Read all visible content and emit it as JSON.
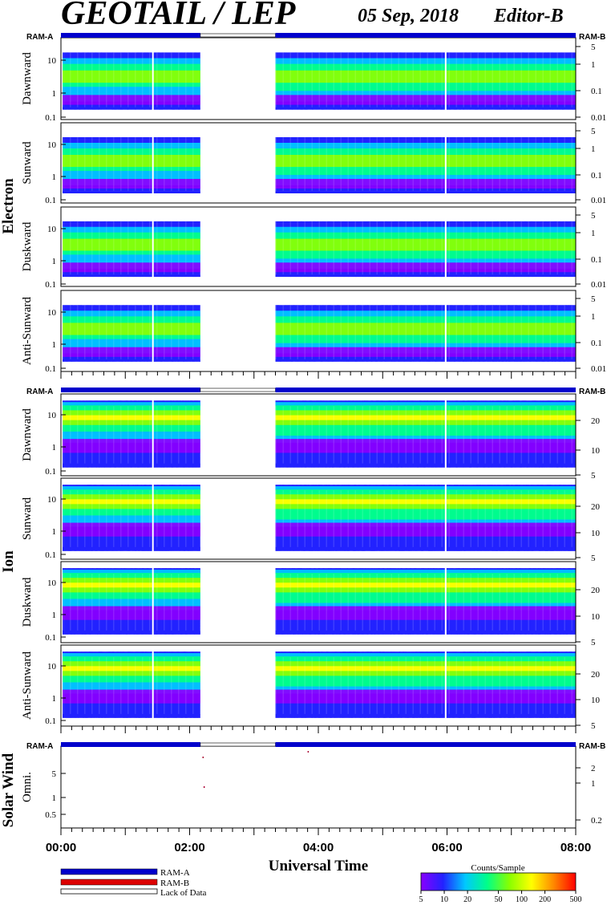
{
  "header": {
    "instrument": "GEOTAIL / LEP",
    "date": "05 Sep, 2018",
    "editor": "Editor-B"
  },
  "ram_labels": {
    "a": "RAM-A",
    "b": "RAM-B"
  },
  "groups": {
    "electron": "Electron",
    "ion": "Ion",
    "solar_wind": "Solar Wind"
  },
  "xaxis": {
    "title": "Universal Time",
    "ticks": [
      "00:00",
      "02:00",
      "04:00",
      "06:00",
      "08:00"
    ]
  },
  "legend": {
    "ram_a": "RAM-A",
    "ram_b": "RAM-B",
    "lack": "Lack of Data"
  },
  "colorbar": {
    "title": "Counts/Sample",
    "ticks": [
      "5",
      "10",
      "20",
      "50",
      "100",
      "200",
      "500"
    ],
    "colors": [
      "#8800ff",
      "#2222ff",
      "#00c8ff",
      "#00ff88",
      "#88ff00",
      "#ffff00",
      "#ff8800",
      "#ff0000"
    ]
  },
  "chart_data": {
    "type": "heatmap",
    "x_range": [
      "00:00",
      "08:00"
    ],
    "data_gap": [
      "02:10",
      "03:20"
    ],
    "panels": [
      {
        "group": "Electron",
        "label": "Dawnward",
        "left_ticks": [
          "10",
          "1",
          "0.1"
        ],
        "right_ticks": [
          "5",
          "1",
          "0.1",
          "0.01"
        ]
      },
      {
        "group": "Electron",
        "label": "Sunward",
        "left_ticks": [
          "10",
          "1",
          "0.1"
        ],
        "right_ticks": [
          "5",
          "1",
          "0.1",
          "0.01"
        ]
      },
      {
        "group": "Electron",
        "label": "Duskward",
        "left_ticks": [
          "10",
          "1",
          "0.1"
        ],
        "right_ticks": [
          "5",
          "1",
          "0.1",
          "0.01"
        ]
      },
      {
        "group": "Electron",
        "label": "Anti-Sunward",
        "left_ticks": [
          "10",
          "1",
          "0.1"
        ],
        "right_ticks": [
          "5",
          "1",
          "0.1",
          "0.01"
        ]
      },
      {
        "group": "Ion",
        "label": "Dawnward",
        "left_ticks": [
          "10",
          "1",
          "0.1"
        ],
        "right_ticks": [
          "20",
          "10",
          "5"
        ]
      },
      {
        "group": "Ion",
        "label": "Sunward",
        "left_ticks": [
          "10",
          "1",
          "0.1"
        ],
        "right_ticks": [
          "20",
          "10",
          "5"
        ]
      },
      {
        "group": "Ion",
        "label": "Duskward",
        "left_ticks": [
          "10",
          "1",
          "0.1"
        ],
        "right_ticks": [
          "20",
          "10",
          "5"
        ]
      },
      {
        "group": "Ion",
        "label": "Anti-Sunward",
        "left_ticks": [
          "10",
          "1",
          "0.1"
        ],
        "right_ticks": [
          "20",
          "10",
          "5"
        ]
      },
      {
        "group": "Solar Wind",
        "label": "Omni.",
        "left_ticks": [
          "5",
          "1",
          "0.5"
        ],
        "right_ticks": [
          "2",
          "1",
          "0.2"
        ]
      }
    ]
  }
}
